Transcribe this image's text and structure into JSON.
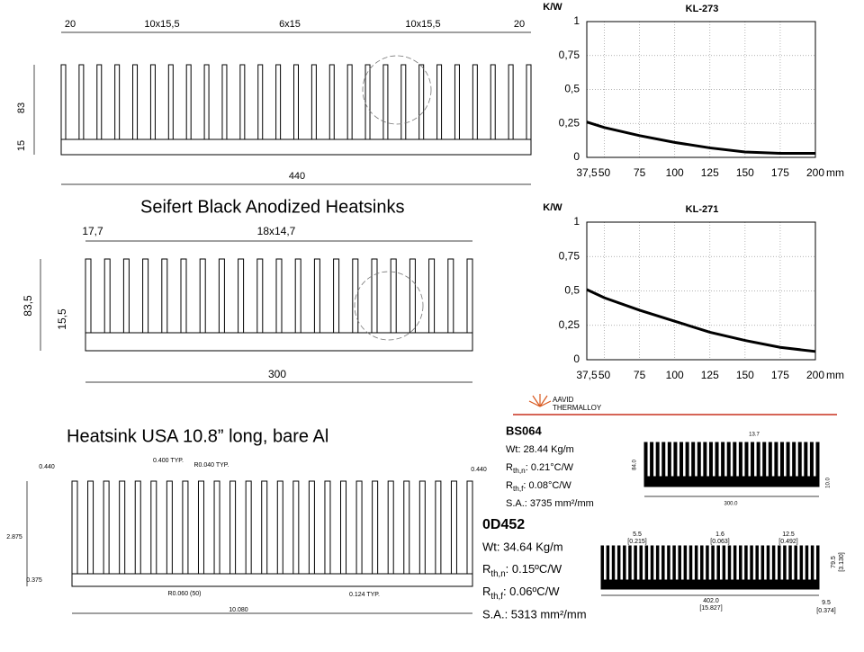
{
  "chart_data": [
    {
      "type": "line",
      "title": "KL-273",
      "y_label": "K/W",
      "x_label": "mm",
      "x": [
        37.5,
        50,
        75,
        100,
        125,
        150,
        175,
        200
      ],
      "series": [
        {
          "color": "#000000",
          "values": [
            0.26,
            0.22,
            0.16,
            0.11,
            0.07,
            0.04,
            0.03,
            0.03
          ]
        }
      ],
      "xlim": [
        37.5,
        200
      ],
      "xticks": [
        {
          "value": 37.5,
          "label": "37,5"
        },
        50,
        75,
        100,
        125,
        150,
        175,
        200
      ],
      "ylim": [
        0,
        1
      ],
      "yticks": [
        0,
        {
          "value": 0.25,
          "label": "0,25"
        },
        {
          "value": 0.5,
          "label": "0,5"
        },
        {
          "value": 0.75,
          "label": "0,75"
        },
        1
      ],
      "grid": true
    },
    {
      "type": "line",
      "title": "KL-271",
      "y_label": "K/W",
      "x_label": "mm",
      "x": [
        37.5,
        50,
        75,
        100,
        125,
        150,
        175,
        200
      ],
      "series": [
        {
          "color": "#000000",
          "values": [
            0.51,
            0.45,
            0.36,
            0.28,
            0.2,
            0.14,
            0.09,
            0.06
          ]
        }
      ],
      "xlim": [
        37.5,
        200
      ],
      "xticks": [
        {
          "value": 37.5,
          "label": "37,5"
        },
        50,
        75,
        100,
        125,
        150,
        175,
        200
      ],
      "ylim": [
        0,
        1
      ],
      "yticks": [
        0,
        {
          "value": 0.25,
          "label": "0,25"
        },
        {
          "value": 0.5,
          "label": "0,5"
        },
        {
          "value": 0.75,
          "label": "0,75"
        },
        1
      ],
      "grid": true
    }
  ],
  "headings": {
    "seifert": "Seifert   Black Anodized Heatsinks",
    "usa": "Heatsink USA   10.8” long,   bare Al"
  },
  "drawing_1": {
    "dims": [
      "20",
      "10x15,5",
      "6x15",
      "10x15,5",
      "20",
      "83",
      "15",
      "440"
    ]
  },
  "drawing_2": {
    "dims": [
      "17,7",
      "18x14,7",
      "83,5",
      "15,5",
      "300"
    ]
  },
  "drawing_3": {
    "dims": [
      "0.440",
      "0.400 TYP.",
      "R0.040 TYP.",
      "0.440",
      "2.875",
      "0.375",
      "R0.060 (50)",
      "0.124 TYP.",
      "10.080"
    ]
  },
  "logo": {
    "line1": "AAVID",
    "line2": "THERMALLOY"
  },
  "bs064": {
    "name": "BS064",
    "wt": "Wt:  28.44 Kg/m",
    "rthn": {
      "symbol": "R",
      "sub": "th,n",
      "value": ":  0.21°C/W"
    },
    "rthf": {
      "symbol": "R",
      "sub": "th,f",
      "value": ":  0.08°C/W"
    },
    "sa": "S.A.:  3735 mm²/mm",
    "dims": [
      "13.7",
      "84.0",
      "10.0",
      "300.0"
    ]
  },
  "od452": {
    "name": "0D452",
    "wt": "Wt:  34.64 Kg/m",
    "rthn": {
      "symbol": "R",
      "sub": "th,n",
      "value": ":  0.15ºC/W"
    },
    "rthf": {
      "symbol": "R",
      "sub": "th,f",
      "value": ":  0.06ºC/W"
    },
    "sa": "S.A.:  5313 mm²/mm",
    "dims": [
      "5.5",
      "[0.215]",
      "1.6",
      "[0.063]",
      "12.5",
      "[0.492]",
      "79.5",
      "[3.130]",
      "402.0",
      "[15.827]",
      "9.5",
      "[0.374]"
    ]
  }
}
